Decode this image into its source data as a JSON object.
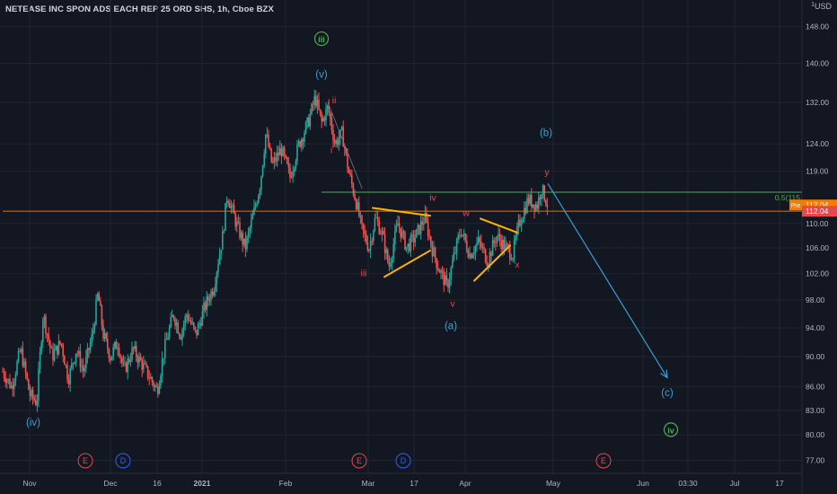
{
  "chart_data": {
    "type": "candlestick",
    "title": "NETEASE INC SPON ADS EACH REP 25 ORD SHS, 1h, Cboe BZX",
    "unit_label": "USD",
    "y_scale": "log",
    "ylim": [
      75.5,
      154
    ],
    "y_ticks": [
      {
        "value": 148,
        "label": "148.00"
      },
      {
        "value": 140,
        "label": "140.00"
      },
      {
        "value": 132,
        "label": "132.00"
      },
      {
        "value": 124,
        "label": "124.00"
      },
      {
        "value": 119,
        "label": "119.00"
      },
      {
        "value": 110,
        "label": "110.00"
      },
      {
        "value": 106,
        "label": "106.00"
      },
      {
        "value": 102,
        "label": "102.00"
      },
      {
        "value": 98,
        "label": "98.00"
      },
      {
        "value": 94,
        "label": "94.00"
      },
      {
        "value": 90,
        "label": "90.00"
      },
      {
        "value": 86,
        "label": "86.00"
      },
      {
        "value": 83,
        "label": "83.00"
      },
      {
        "value": 80,
        "label": "80.00"
      },
      {
        "value": 77,
        "label": "77.00"
      }
    ],
    "x_ticks": [
      {
        "t": 3,
        "label": "Nov",
        "bold": false
      },
      {
        "t": 12,
        "label": "Dec",
        "bold": false
      },
      {
        "t": 17.2,
        "label": "16",
        "bold": false
      },
      {
        "t": 22.2,
        "label": "2021",
        "bold": true
      },
      {
        "t": 31.5,
        "label": "Feb",
        "bold": false
      },
      {
        "t": 40.7,
        "label": "Mar",
        "bold": false
      },
      {
        "t": 45.8,
        "label": "17",
        "bold": false
      },
      {
        "t": 51.5,
        "label": "Apr",
        "bold": false
      },
      {
        "t": 61.3,
        "label": "May",
        "bold": false
      },
      {
        "t": 71.3,
        "label": "Jun",
        "bold": false
      },
      {
        "t": 76.3,
        "label": "03:30",
        "bold": false
      },
      {
        "t": 81.5,
        "label": "Jul",
        "bold": false
      },
      {
        "t": 86.5,
        "label": "17",
        "bold": false
      }
    ],
    "price_path": [
      [
        0,
        88
      ],
      [
        1,
        86
      ],
      [
        2,
        91
      ],
      [
        3,
        85
      ],
      [
        3.8,
        84
      ],
      [
        4.5,
        96
      ],
      [
        5.5,
        90
      ],
      [
        6.5,
        92
      ],
      [
        7.3,
        87
      ],
      [
        8.2,
        91
      ],
      [
        9,
        88
      ],
      [
        10,
        93
      ],
      [
        10.6,
        99
      ],
      [
        11.2,
        93
      ],
      [
        12,
        90
      ],
      [
        12.8,
        92
      ],
      [
        13.5,
        88
      ],
      [
        14.5,
        91
      ],
      [
        15.5,
        89
      ],
      [
        16.5,
        87
      ],
      [
        17.2,
        85.5
      ],
      [
        18,
        91
      ],
      [
        19,
        96
      ],
      [
        19.8,
        93
      ],
      [
        20.5,
        96
      ],
      [
        21.5,
        93
      ],
      [
        22.5,
        97
      ],
      [
        23.5,
        100
      ],
      [
        24.5,
        108
      ],
      [
        25,
        115
      ],
      [
        26,
        110
      ],
      [
        27,
        106
      ],
      [
        28,
        112
      ],
      [
        28.7,
        117
      ],
      [
        29.3,
        126
      ],
      [
        30,
        120
      ],
      [
        31,
        123
      ],
      [
        32,
        118
      ],
      [
        33,
        124
      ],
      [
        34,
        128
      ],
      [
        34.8,
        133
      ],
      [
        35.5,
        128
      ],
      [
        36.2,
        131
      ],
      [
        37,
        124
      ],
      [
        37.8,
        126
      ],
      [
        38.5,
        119
      ],
      [
        39.3,
        114
      ],
      [
        40,
        109
      ],
      [
        40.8,
        106
      ],
      [
        41.5,
        111
      ],
      [
        42.3,
        108
      ],
      [
        43,
        103
      ],
      [
        44,
        110
      ],
      [
        45,
        106
      ],
      [
        46,
        108
      ],
      [
        47,
        111
      ],
      [
        47.8,
        106
      ],
      [
        48.5,
        103
      ],
      [
        49.5,
        100
      ],
      [
        50.3,
        105
      ],
      [
        51,
        109
      ],
      [
        52,
        105
      ],
      [
        53,
        107
      ],
      [
        54,
        104
      ],
      [
        55,
        108
      ],
      [
        56,
        106
      ],
      [
        56.8,
        105
      ],
      [
        57.5,
        110
      ],
      [
        58.5,
        114
      ],
      [
        59.5,
        113
      ],
      [
        60,
        116
      ],
      [
        60.7,
        113
      ]
    ],
    "horizontal_lines": [
      {
        "value": 115.3,
        "color": "#4caf50",
        "t_start": 35.5,
        "label": "0.5(115"
      },
      {
        "value": 112.04,
        "color": "#ef6c00",
        "t_start": 0,
        "label": ""
      }
    ],
    "price_labels": [
      {
        "value": 113.1,
        "label": "112.04",
        "tag": "Pre",
        "color": "#f57c00"
      },
      {
        "value": 112.04,
        "label": "112.04",
        "tag": "",
        "color": "#e5484d"
      }
    ],
    "trend_lines": [
      {
        "points": [
          [
            41.2,
            112.6
          ],
          [
            47.6,
            111.3
          ]
        ],
        "color": "#ffb300"
      },
      {
        "points": [
          [
            42.5,
            101.5
          ],
          [
            47.6,
            105.6
          ]
        ],
        "color": "#ffb300"
      },
      {
        "points": [
          [
            53.2,
            110.8
          ],
          [
            57.3,
            108.5
          ]
        ],
        "color": "#ffb300"
      },
      {
        "points": [
          [
            52.5,
            100.9
          ],
          [
            56.5,
            106.4
          ]
        ],
        "color": "#ffb300"
      },
      {
        "points": [
          [
            36.2,
            132
          ],
          [
            40,
            116
          ]
        ],
        "color": "#787b86"
      }
    ],
    "projection_arrow": {
      "from": [
        60.7,
        116.8
      ],
      "to": [
        74,
        87.2
      ],
      "color": "#3a9fd4"
    },
    "wave_labels": [
      {
        "t": 35.5,
        "value": 144.5,
        "text": "iii",
        "color": "#4caf50",
        "circled": true
      },
      {
        "t": 35.5,
        "value": 137.0,
        "text": "(v)",
        "color": "#3a9fd4",
        "circled": false
      },
      {
        "t": 36.9,
        "value": 131.8,
        "text": "ii",
        "color": "#e5484d",
        "circled": false
      },
      {
        "t": 36.6,
        "value": 122.3,
        "text": "i",
        "color": "#e5484d",
        "circled": false
      },
      {
        "t": 40.2,
        "value": 101.6,
        "text": "iii",
        "color": "#e5484d",
        "circled": false
      },
      {
        "t": 47.9,
        "value": 113.8,
        "text": "iv",
        "color": "#e5484d",
        "circled": false
      },
      {
        "t": 50.1,
        "value": 97.0,
        "text": "v",
        "color": "#e5484d",
        "circled": false
      },
      {
        "t": 51.6,
        "value": 111.2,
        "text": "w",
        "color": "#e5484d",
        "circled": false
      },
      {
        "t": 57.3,
        "value": 102.9,
        "text": "x",
        "color": "#e5484d",
        "circled": false
      },
      {
        "t": 60.6,
        "value": 118.3,
        "text": "y",
        "color": "#e5484d",
        "circled": false
      },
      {
        "t": 60.5,
        "value": 125.5,
        "text": "(b)",
        "color": "#3a9fd4",
        "circled": false
      },
      {
        "t": 49.9,
        "value": 93.8,
        "text": "(a)",
        "color": "#3a9fd4",
        "circled": false
      },
      {
        "t": 74,
        "value": 84.8,
        "text": "(c)",
        "color": "#3a9fd4",
        "circled": false
      },
      {
        "t": 74.4,
        "value": 80.2,
        "text": "iv",
        "color": "#4caf50",
        "circled": true
      },
      {
        "t": 3.4,
        "value": 81.1,
        "text": "(iv)",
        "color": "#3a9fd4",
        "circled": false
      }
    ],
    "events": [
      {
        "t": 9.2,
        "text": "E",
        "color": "#e5484d"
      },
      {
        "t": 13.4,
        "text": "D",
        "color": "#2962ff"
      },
      {
        "t": 39.7,
        "text": "E",
        "color": "#e5484d"
      },
      {
        "t": 44.6,
        "text": "D",
        "color": "#2962ff"
      },
      {
        "t": 66.9,
        "text": "E",
        "color": "#e5484d"
      }
    ],
    "colors": {
      "up": "#26a69a",
      "down": "#ef5350",
      "grid": "#1f2430",
      "text": "#b2b5be",
      "background": "#131722"
    }
  }
}
